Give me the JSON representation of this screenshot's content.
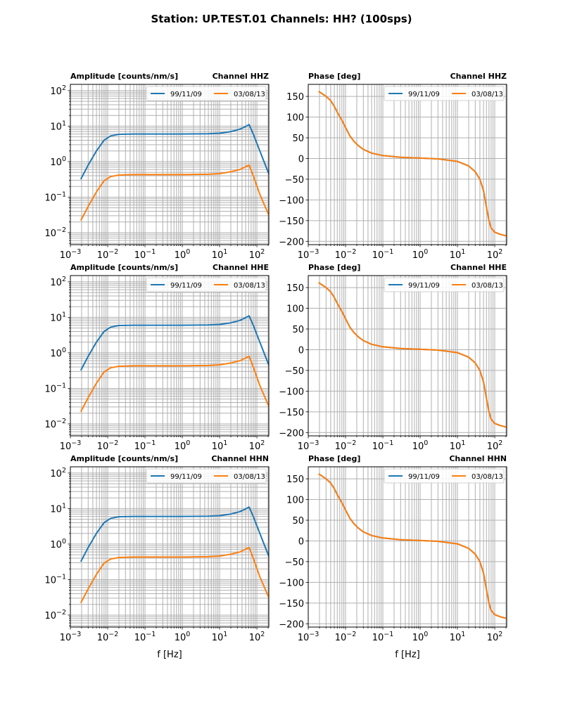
{
  "title": "Station: UP.TEST.01 Channels: HH? (100sps)",
  "colors": {
    "series1": "#1f77b4",
    "series2": "#ff7f0e",
    "grid": "#b0b0b0"
  },
  "chart_data": [
    {
      "type": "line",
      "channel": "Channel HHZ",
      "ylabel": "Amplitude [counts/nm/s]",
      "xscale": "log",
      "yscale": "log",
      "xlim": [
        0.001,
        209
      ],
      "ylim": [
        0.0046,
        150
      ],
      "xticks": [
        "10^-3",
        "10^-2",
        "10^-1",
        "10^0",
        "10^1",
        "10^2"
      ],
      "yticks": [
        "10^-2",
        "10^-1",
        "10^0",
        "10^1",
        "10^2"
      ],
      "legend": [
        "99/11/09",
        "03/08/13"
      ],
      "legend_position": "top-right",
      "grid": true,
      "x": [
        0.0019,
        0.003,
        0.005,
        0.008,
        0.012,
        0.02,
        0.05,
        0.1,
        1,
        5,
        10,
        20,
        35,
        50,
        62,
        80,
        120,
        209
      ],
      "series": [
        {
          "name": "99/11/09",
          "values": [
            0.32,
            0.8,
            2.0,
            4.0,
            5.3,
            5.9,
            6.0,
            6.0,
            6.0,
            6.1,
            6.3,
            7.0,
            8.2,
            9.8,
            11.0,
            6.0,
            2.0,
            0.45
          ]
        },
        {
          "name": "03/08/13",
          "values": [
            0.022,
            0.055,
            0.14,
            0.29,
            0.38,
            0.42,
            0.43,
            0.43,
            0.43,
            0.44,
            0.46,
            0.52,
            0.6,
            0.72,
            0.8,
            0.4,
            0.12,
            0.031
          ]
        }
      ]
    },
    {
      "type": "line",
      "channel": "Channel HHZ",
      "ylabel": "Phase [deg]",
      "xscale": "log",
      "xlim": [
        0.001,
        209
      ],
      "ylim": [
        -208,
        179
      ],
      "xticks": [
        "10^-3",
        "10^-2",
        "10^-1",
        "10^0",
        "10^1",
        "10^2"
      ],
      "yticks": [
        "150",
        "100",
        "50",
        "0",
        "−50",
        "−100",
        "−150",
        "−200"
      ],
      "legend": [
        "99/11/09",
        "03/08/13"
      ],
      "legend_position": "top-right",
      "grid": true,
      "x": [
        0.0019,
        0.003,
        0.004,
        0.005,
        0.006,
        0.008,
        0.01,
        0.013,
        0.017,
        0.022,
        0.03,
        0.05,
        0.1,
        0.3,
        1,
        3,
        10,
        20,
        30,
        40,
        50,
        60,
        70,
        80,
        100,
        140,
        209
      ],
      "series": [
        {
          "name": "99/11/09",
          "values": [
            162,
            150,
            140,
            126,
            112,
            92,
            75,
            55,
            41,
            31,
            22,
            13,
            7,
            3,
            1,
            -1,
            -7,
            -18,
            -32,
            -50,
            -78,
            -118,
            -150,
            -168,
            -178,
            -183,
            -187
          ]
        },
        {
          "name": "03/08/13",
          "values": [
            162,
            150,
            140,
            126,
            112,
            92,
            75,
            55,
            41,
            31,
            22,
            13,
            7,
            3,
            1,
            -1,
            -7,
            -18,
            -32,
            -50,
            -78,
            -118,
            -150,
            -168,
            -178,
            -183,
            -187
          ]
        }
      ]
    },
    {
      "type": "line",
      "channel": "Channel HHE",
      "ylabel": "Amplitude [counts/nm/s]",
      "xscale": "log",
      "yscale": "log",
      "xlim": [
        0.001,
        209
      ],
      "ylim": [
        0.0046,
        150
      ],
      "xticks": [
        "10^-3",
        "10^-2",
        "10^-1",
        "10^0",
        "10^1",
        "10^2"
      ],
      "yticks": [
        "10^-2",
        "10^-1",
        "10^0",
        "10^1",
        "10^2"
      ],
      "legend": [
        "99/11/09",
        "03/08/13"
      ],
      "legend_position": "top-right",
      "grid": true,
      "x": [
        0.0019,
        0.003,
        0.005,
        0.008,
        0.012,
        0.02,
        0.05,
        0.1,
        1,
        5,
        10,
        20,
        35,
        50,
        62,
        80,
        120,
        209
      ],
      "series": [
        {
          "name": "99/11/09",
          "values": [
            0.32,
            0.8,
            2.0,
            4.0,
            5.3,
            5.9,
            6.0,
            6.0,
            6.0,
            6.1,
            6.3,
            7.0,
            8.2,
            9.8,
            11.0,
            6.0,
            2.0,
            0.45
          ]
        },
        {
          "name": "03/08/13",
          "values": [
            0.022,
            0.055,
            0.14,
            0.29,
            0.38,
            0.42,
            0.43,
            0.43,
            0.43,
            0.44,
            0.46,
            0.52,
            0.6,
            0.72,
            0.8,
            0.4,
            0.12,
            0.031
          ]
        }
      ]
    },
    {
      "type": "line",
      "channel": "Channel HHE",
      "ylabel": "Phase [deg]",
      "xscale": "log",
      "xlim": [
        0.001,
        209
      ],
      "ylim": [
        -208,
        179
      ],
      "xticks": [
        "10^-3",
        "10^-2",
        "10^-1",
        "10^0",
        "10^1",
        "10^2"
      ],
      "yticks": [
        "150",
        "100",
        "50",
        "0",
        "−50",
        "−100",
        "−150",
        "−200"
      ],
      "legend": [
        "99/11/09",
        "03/08/13"
      ],
      "legend_position": "top-right",
      "grid": true,
      "x": [
        0.0019,
        0.003,
        0.004,
        0.005,
        0.006,
        0.008,
        0.01,
        0.013,
        0.017,
        0.022,
        0.03,
        0.05,
        0.1,
        0.3,
        1,
        3,
        10,
        20,
        30,
        40,
        50,
        60,
        70,
        80,
        100,
        140,
        209
      ],
      "series": [
        {
          "name": "99/11/09",
          "values": [
            162,
            150,
            140,
            126,
            112,
            92,
            75,
            55,
            41,
            31,
            22,
            13,
            7,
            3,
            1,
            -1,
            -7,
            -18,
            -32,
            -50,
            -78,
            -118,
            -150,
            -168,
            -178,
            -183,
            -187
          ]
        },
        {
          "name": "03/08/13",
          "values": [
            162,
            150,
            140,
            126,
            112,
            92,
            75,
            55,
            41,
            31,
            22,
            13,
            7,
            3,
            1,
            -1,
            -7,
            -18,
            -32,
            -50,
            -78,
            -118,
            -150,
            -168,
            -178,
            -183,
            -187
          ]
        }
      ]
    },
    {
      "type": "line",
      "channel": "Channel HHN",
      "ylabel": "Amplitude [counts/nm/s]",
      "xlabel": "f [Hz]",
      "xscale": "log",
      "yscale": "log",
      "xlim": [
        0.001,
        209
      ],
      "ylim": [
        0.0046,
        150
      ],
      "xticks": [
        "10^-3",
        "10^-2",
        "10^-1",
        "10^0",
        "10^1",
        "10^2"
      ],
      "yticks": [
        "10^-2",
        "10^-1",
        "10^0",
        "10^1",
        "10^2"
      ],
      "legend": [
        "99/11/09",
        "03/08/13"
      ],
      "legend_position": "top-right",
      "grid": true,
      "x": [
        0.0019,
        0.003,
        0.005,
        0.008,
        0.012,
        0.02,
        0.05,
        0.1,
        1,
        5,
        10,
        20,
        35,
        50,
        62,
        80,
        120,
        209
      ],
      "series": [
        {
          "name": "99/11/09",
          "values": [
            0.32,
            0.8,
            2.0,
            4.0,
            5.3,
            5.9,
            6.0,
            6.0,
            6.0,
            6.1,
            6.3,
            7.0,
            8.2,
            9.8,
            11.0,
            6.0,
            2.0,
            0.45
          ]
        },
        {
          "name": "03/08/13",
          "values": [
            0.022,
            0.055,
            0.14,
            0.29,
            0.38,
            0.42,
            0.43,
            0.43,
            0.43,
            0.44,
            0.46,
            0.52,
            0.6,
            0.72,
            0.8,
            0.4,
            0.12,
            0.031
          ]
        }
      ]
    },
    {
      "type": "line",
      "channel": "Channel HHN",
      "ylabel": "Phase [deg]",
      "xlabel": "f [Hz]",
      "xscale": "log",
      "xlim": [
        0.001,
        209
      ],
      "ylim": [
        -208,
        179
      ],
      "xticks": [
        "10^-3",
        "10^-2",
        "10^-1",
        "10^0",
        "10^1",
        "10^2"
      ],
      "yticks": [
        "150",
        "100",
        "50",
        "0",
        "−50",
        "−100",
        "−150",
        "−200"
      ],
      "legend": [
        "99/11/09",
        "03/08/13"
      ],
      "legend_position": "top-right",
      "grid": true,
      "x": [
        0.0019,
        0.003,
        0.004,
        0.005,
        0.006,
        0.008,
        0.01,
        0.013,
        0.017,
        0.022,
        0.03,
        0.05,
        0.1,
        0.3,
        1,
        3,
        10,
        20,
        30,
        40,
        50,
        60,
        70,
        80,
        100,
        140,
        209
      ],
      "series": [
        {
          "name": "99/11/09",
          "values": [
            162,
            150,
            140,
            126,
            112,
            92,
            75,
            55,
            41,
            31,
            22,
            13,
            7,
            3,
            1,
            -1,
            -7,
            -18,
            -32,
            -50,
            -78,
            -118,
            -150,
            -168,
            -178,
            -183,
            -187
          ]
        },
        {
          "name": "03/08/13",
          "values": [
            162,
            150,
            140,
            126,
            112,
            92,
            75,
            55,
            41,
            31,
            22,
            13,
            7,
            3,
            1,
            -1,
            -7,
            -18,
            -32,
            -50,
            -78,
            -118,
            -150,
            -168,
            -178,
            -183,
            -187
          ]
        }
      ]
    }
  ]
}
